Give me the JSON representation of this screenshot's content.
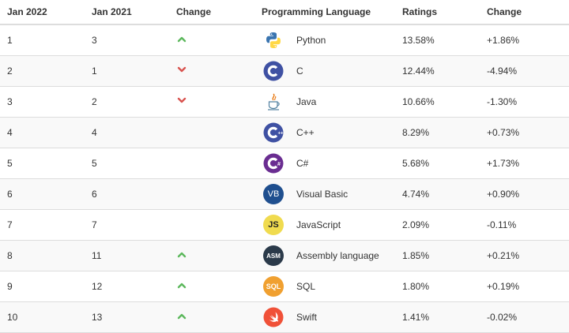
{
  "headers": {
    "jan2022": "Jan 2022",
    "jan2021": "Jan 2021",
    "change": "Change",
    "language": "Programming Language",
    "ratings": "Ratings",
    "change2": "Change"
  },
  "colors": {
    "up": "#5cb85c",
    "down": "#d9534f",
    "python_blue": "#3a75b0",
    "python_yellow": "#ffd845",
    "c_blue": "#3f51a3",
    "csharp_purple": "#6a2d91",
    "vb_blue": "#1f4f8f",
    "js_yellow": "#f0db4f",
    "asm_dark": "#2b3a4a",
    "sql_orange": "#f0a030",
    "swift_orange": "#f05138"
  },
  "rows": [
    {
      "rank": "1",
      "prev": "3",
      "trend": "up",
      "logo_icon": "python-logo-icon",
      "language": "Python",
      "rating": "13.58%",
      "delta": "+1.86%"
    },
    {
      "rank": "2",
      "prev": "1",
      "trend": "down",
      "logo_icon": "c-logo-icon",
      "language": "C",
      "rating": "12.44%",
      "delta": "-4.94%"
    },
    {
      "rank": "3",
      "prev": "2",
      "trend": "down",
      "logo_icon": "java-logo-icon",
      "language": "Java",
      "rating": "10.66%",
      "delta": "-1.30%"
    },
    {
      "rank": "4",
      "prev": "4",
      "trend": "none",
      "logo_icon": "cpp-logo-icon",
      "language": "C++",
      "rating": "8.29%",
      "delta": "+0.73%"
    },
    {
      "rank": "5",
      "prev": "5",
      "trend": "none",
      "logo_icon": "csharp-logo-icon",
      "language": "C#",
      "rating": "5.68%",
      "delta": "+1.73%"
    },
    {
      "rank": "6",
      "prev": "6",
      "trend": "none",
      "logo_icon": "visual-basic-logo-icon",
      "language": "Visual Basic",
      "rating": "4.74%",
      "delta": "+0.90%"
    },
    {
      "rank": "7",
      "prev": "7",
      "trend": "none",
      "logo_icon": "javascript-logo-icon",
      "language": "JavaScript",
      "rating": "2.09%",
      "delta": "-0.11%"
    },
    {
      "rank": "8",
      "prev": "11",
      "trend": "up",
      "logo_icon": "assembly-logo-icon",
      "language": "Assembly language",
      "rating": "1.85%",
      "delta": "+0.21%"
    },
    {
      "rank": "9",
      "prev": "12",
      "trend": "up",
      "logo_icon": "sql-logo-icon",
      "language": "SQL",
      "rating": "1.80%",
      "delta": "+0.19%"
    },
    {
      "rank": "10",
      "prev": "13",
      "trend": "up",
      "logo_icon": "swift-logo-icon",
      "language": "Swift",
      "rating": "1.41%",
      "delta": "-0.02%"
    }
  ],
  "logo_text": {
    "vb": "VB",
    "js": "JS",
    "asm": "ASM",
    "sql": "SQL"
  }
}
